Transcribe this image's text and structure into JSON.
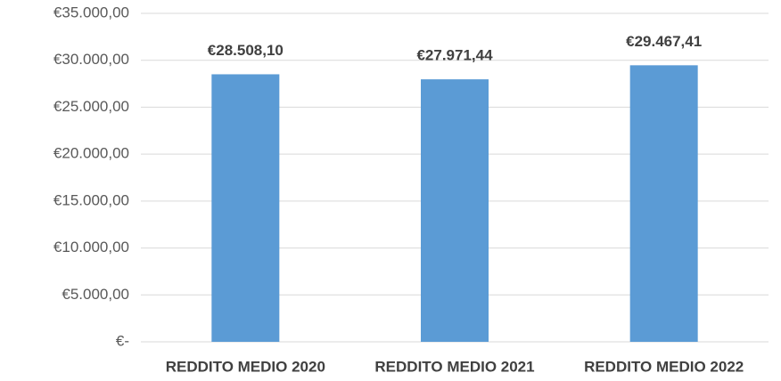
{
  "chart_data": {
    "type": "bar",
    "categories": [
      "REDDITO MEDIO 2020",
      "REDDITO MEDIO 2021",
      "REDDITO MEDIO 2022"
    ],
    "values": [
      28508.1,
      27971.44,
      29467.41
    ],
    "value_labels": [
      "€28.508,10",
      "€27.971,44",
      "€29.467,41"
    ],
    "color": "#5b9bd5",
    "ylim": [
      0,
      35000
    ],
    "yticks": [
      {
        "value": 0,
        "label": "€-"
      },
      {
        "value": 5000,
        "label": "€5.000,00"
      },
      {
        "value": 10000,
        "label": "€10.000,00"
      },
      {
        "value": 15000,
        "label": "€15.000,00"
      },
      {
        "value": 20000,
        "label": "€20.000,00"
      },
      {
        "value": 25000,
        "label": "€25.000,00"
      },
      {
        "value": 30000,
        "label": "€30.000,00"
      },
      {
        "value": 35000,
        "label": "€35.000,00"
      }
    ],
    "grid": true
  }
}
